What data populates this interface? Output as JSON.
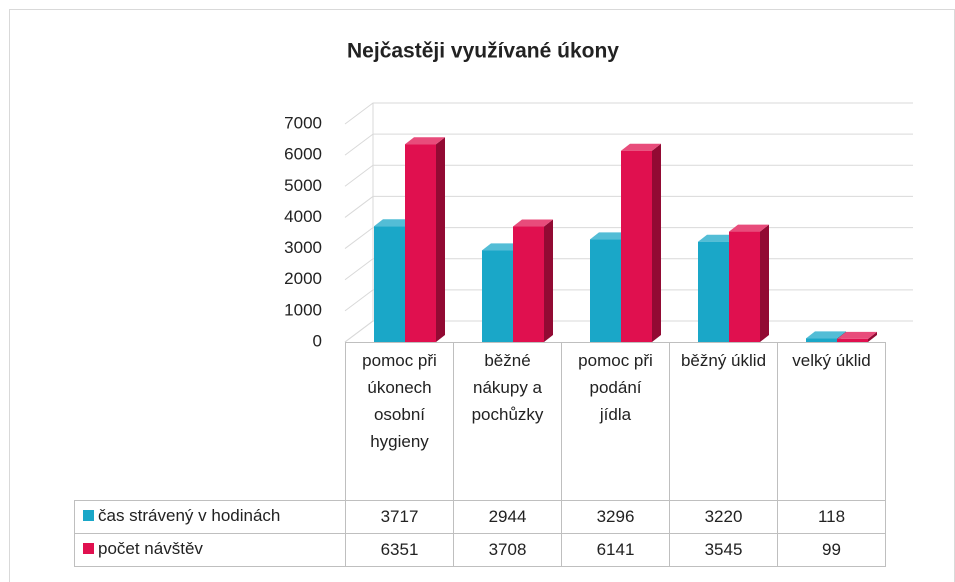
{
  "chart_data": {
    "type": "bar3d",
    "title": "Nejčastěji využívané úkony",
    "categories": [
      "pomoc při úkonech osobní hygieny",
      "běžné nákupy a pochůzky",
      "pomoc při podání jídla",
      "běžný úklid",
      "velký úklid"
    ],
    "series": [
      {
        "name": "čas strávený v hodinách",
        "color": "#1aa7c8",
        "values": [
          3717,
          2944,
          3296,
          3220,
          118
        ]
      },
      {
        "name": "počet návštěv",
        "color": "#e0104f",
        "values": [
          6351,
          3708,
          6141,
          3545,
          99
        ]
      }
    ],
    "ylim": [
      0,
      7000
    ],
    "yticks": [
      0,
      1000,
      2000,
      3000,
      4000,
      5000,
      6000,
      7000
    ],
    "grid": true,
    "data_table": true
  }
}
